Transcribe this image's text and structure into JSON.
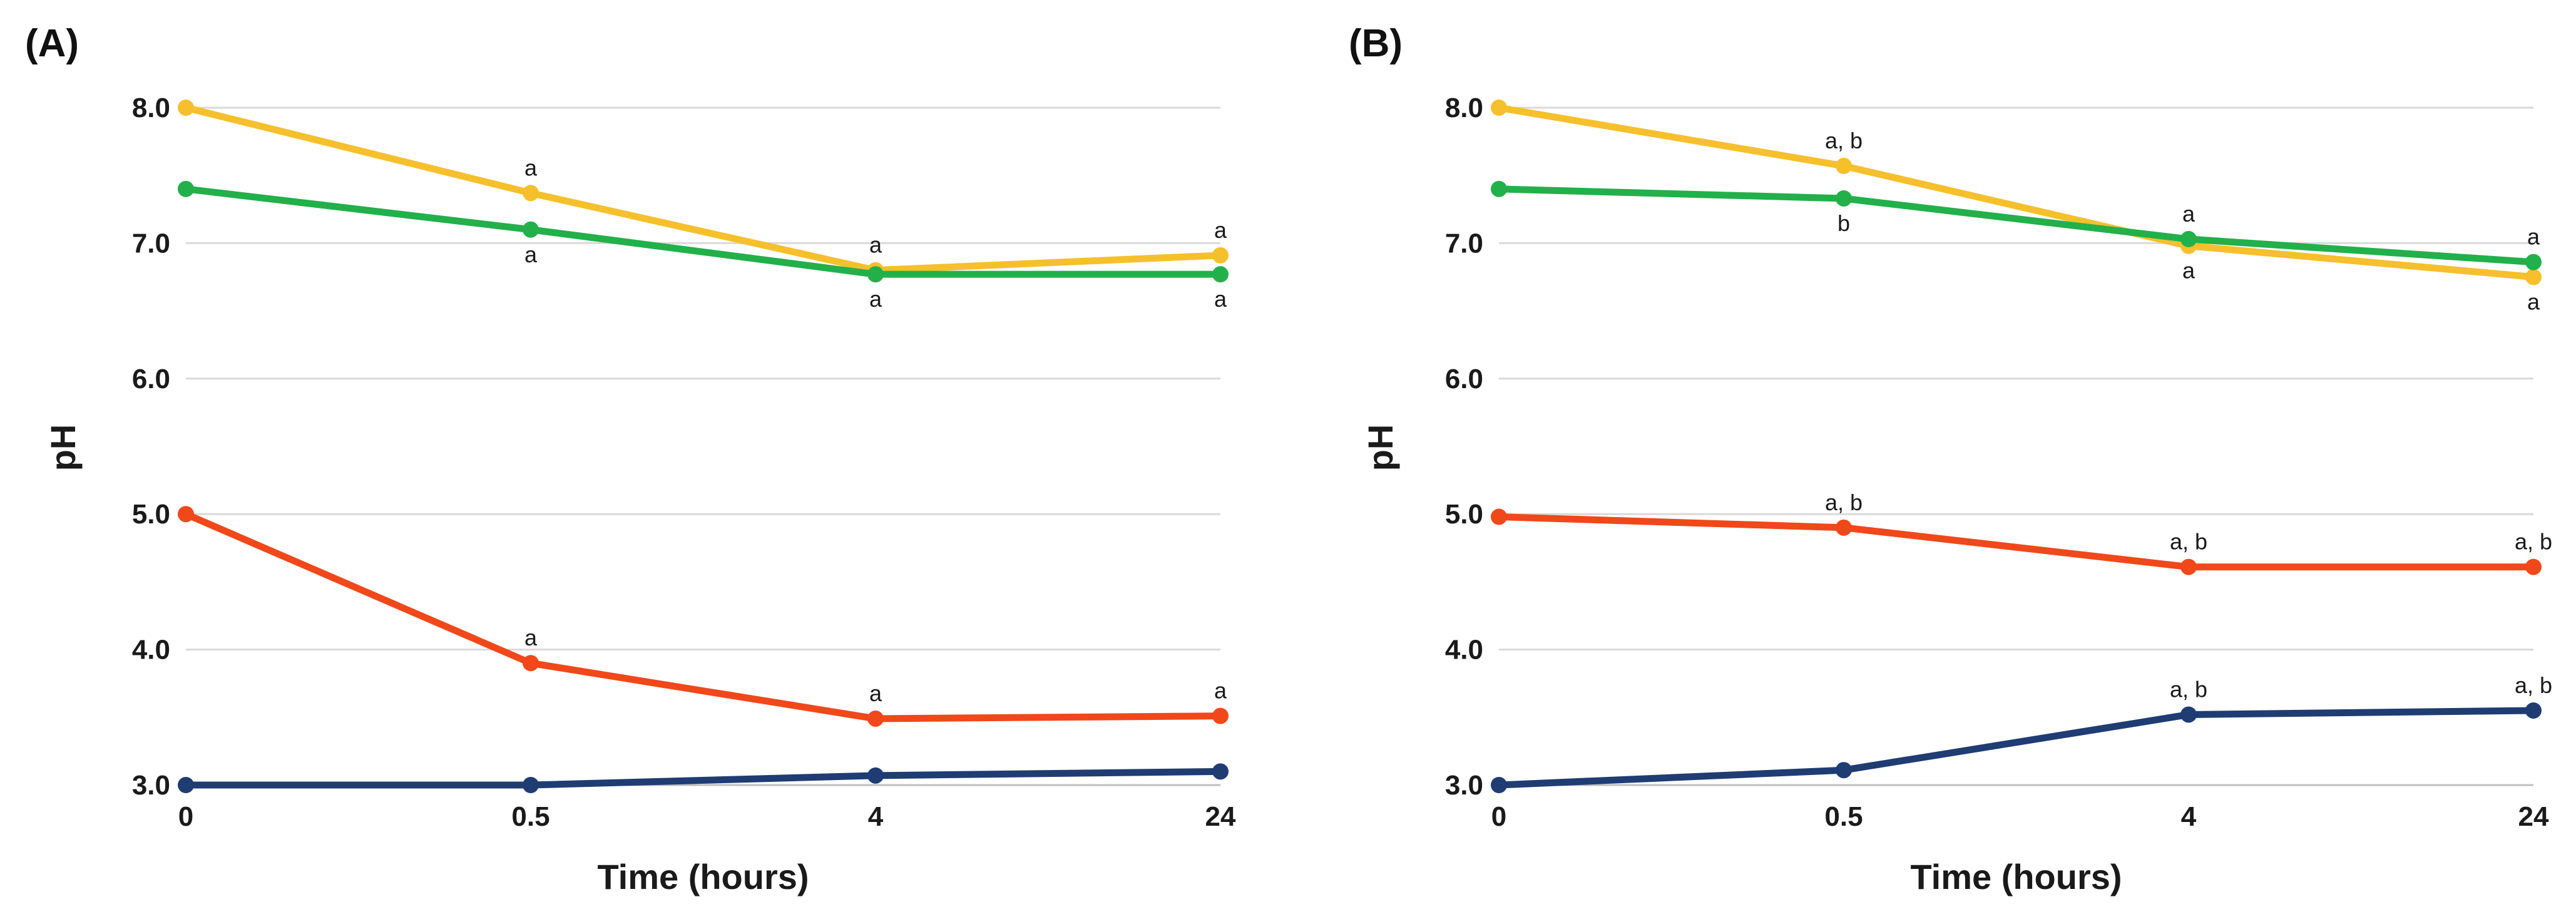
{
  "chart_data": [
    {
      "type": "line",
      "panel_label": "(A)",
      "xlabel": "Time (hours)",
      "ylabel": "pH",
      "categories": [
        "0",
        "0.5",
        "4",
        "24"
      ],
      "y_ticks": [
        "3.0",
        "4.0",
        "5.0",
        "6.0",
        "7.0",
        "8.0"
      ],
      "ylim": [
        3.0,
        8.0
      ],
      "grid": "horizontal",
      "series": [
        {
          "name": "yellow",
          "color": "#f5c02c",
          "values": [
            8.0,
            7.37,
            6.8,
            6.91
          ]
        },
        {
          "name": "green",
          "color": "#22b04a",
          "values": [
            7.4,
            7.1,
            6.77,
            6.77
          ]
        },
        {
          "name": "orange",
          "color": "#f0481a",
          "values": [
            5.0,
            3.9,
            3.49,
            3.51
          ]
        },
        {
          "name": "navy",
          "color": "#1f3c73",
          "values": [
            3.0,
            3.0,
            3.07,
            3.1
          ]
        }
      ],
      "annotations": [
        {
          "text": "a",
          "x": 1,
          "y": 7.37,
          "pos": "above"
        },
        {
          "text": "a",
          "x": 1,
          "y": 7.1,
          "pos": "below"
        },
        {
          "text": "a",
          "x": 2,
          "y": 6.8,
          "pos": "above"
        },
        {
          "text": "a",
          "x": 2,
          "y": 6.77,
          "pos": "below"
        },
        {
          "text": "a",
          "x": 3,
          "y": 6.91,
          "pos": "above"
        },
        {
          "text": "a",
          "x": 3,
          "y": 6.77,
          "pos": "below"
        },
        {
          "text": "a",
          "x": 1,
          "y": 3.9,
          "pos": "above"
        },
        {
          "text": "a",
          "x": 2,
          "y": 3.49,
          "pos": "above"
        },
        {
          "text": "a",
          "x": 3,
          "y": 3.51,
          "pos": "above"
        }
      ]
    },
    {
      "type": "line",
      "panel_label": "(B)",
      "xlabel": "Time (hours)",
      "ylabel": "pH",
      "categories": [
        "0",
        "0.5",
        "4",
        "24"
      ],
      "y_ticks": [
        "3.0",
        "4.0",
        "5.0",
        "6.0",
        "7.0",
        "8.0"
      ],
      "ylim": [
        3.0,
        8.0
      ],
      "grid": "horizontal",
      "series": [
        {
          "name": "yellow",
          "color": "#f5c02c",
          "values": [
            8.0,
            7.57,
            6.98,
            6.75
          ]
        },
        {
          "name": "green",
          "color": "#22b04a",
          "values": [
            7.4,
            7.33,
            7.03,
            6.86
          ]
        },
        {
          "name": "orange",
          "color": "#f0481a",
          "values": [
            4.98,
            4.9,
            4.61,
            4.61
          ]
        },
        {
          "name": "navy",
          "color": "#1f3c73",
          "values": [
            3.0,
            3.11,
            3.52,
            3.55
          ]
        }
      ],
      "annotations": [
        {
          "text": "a, b",
          "x": 1,
          "y": 7.57,
          "pos": "above"
        },
        {
          "text": "b",
          "x": 1,
          "y": 7.33,
          "pos": "below"
        },
        {
          "text": "a",
          "x": 2,
          "y": 7.03,
          "pos": "above"
        },
        {
          "text": "a",
          "x": 2,
          "y": 6.98,
          "pos": "below"
        },
        {
          "text": "a",
          "x": 3,
          "y": 6.86,
          "pos": "above"
        },
        {
          "text": "a",
          "x": 3,
          "y": 6.75,
          "pos": "below"
        },
        {
          "text": "a, b",
          "x": 1,
          "y": 4.9,
          "pos": "above"
        },
        {
          "text": "a, b",
          "x": 2,
          "y": 4.61,
          "pos": "above"
        },
        {
          "text": "a, b",
          "x": 3,
          "y": 4.61,
          "pos": "above"
        },
        {
          "text": "a, b",
          "x": 2,
          "y": 3.52,
          "pos": "above"
        },
        {
          "text": "a, b",
          "x": 3,
          "y": 3.55,
          "pos": "above"
        }
      ]
    }
  ]
}
